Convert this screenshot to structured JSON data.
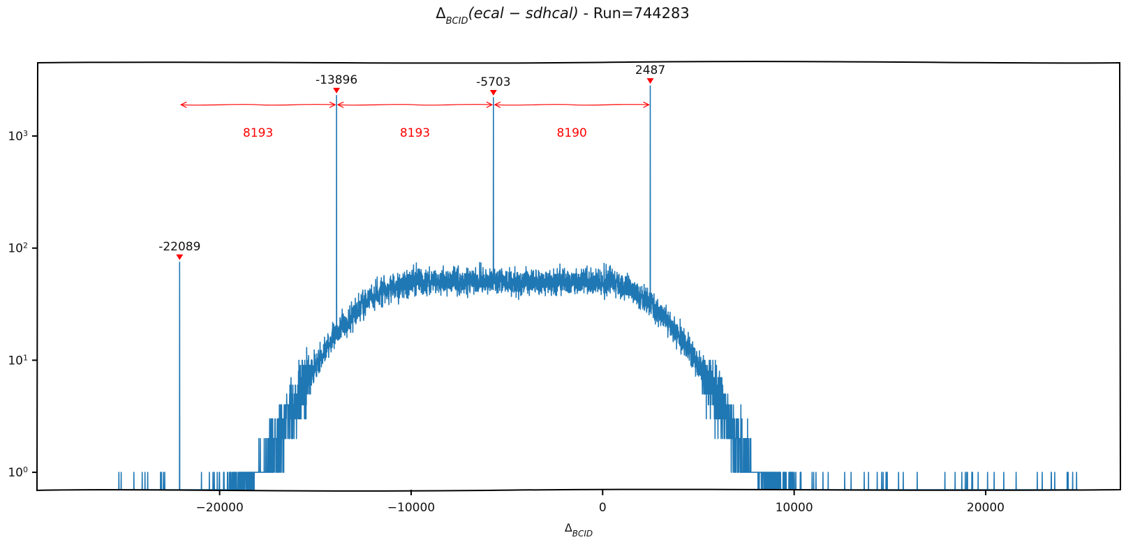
{
  "chart_data": {
    "type": "line",
    "title_prefix": "Δ",
    "title_sub": "BCID",
    "title_expr": "(ecal − sdhcal)",
    "title_suffix": " - Run=744283",
    "xlabel_prefix": "Δ",
    "xlabel_sub": "BCID",
    "yscale": "log",
    "xlim": [
      -29500,
      27000
    ],
    "ylim": [
      0.7,
      4500
    ],
    "xticks": [
      -20000,
      -10000,
      0,
      10000,
      20000
    ],
    "xtick_labels": [
      "−20000",
      "−10000",
      "0",
      "10000",
      "20000"
    ],
    "yticks": [
      1,
      10,
      100,
      1000
    ],
    "ytick_labels": [
      {
        "base": "10",
        "exp": "0"
      },
      {
        "base": "10",
        "exp": "1"
      },
      {
        "base": "10",
        "exp": "2"
      },
      {
        "base": "10",
        "exp": "3"
      }
    ],
    "grid": false,
    "series_color": "#1f77b4",
    "annotation_color": "#ff0000",
    "peaks": [
      {
        "x": -22089,
        "y": 75,
        "label": "-22089"
      },
      {
        "x": -13896,
        "y": 2300,
        "label": "-13896"
      },
      {
        "x": -5703,
        "y": 2200,
        "label": "-5703"
      },
      {
        "x": 2487,
        "y": 2800,
        "label": "2487"
      }
    ],
    "intervals": [
      {
        "from": -22089,
        "to": -13896,
        "label": "8193"
      },
      {
        "from": -13896,
        "to": -5703,
        "label": "8193"
      },
      {
        "from": -5703,
        "to": 2487,
        "label": "8190"
      }
    ],
    "interval_y": 1900,
    "distribution": {
      "plateau_center": -5000,
      "plateau_level": 50,
      "plateau_halfwidth": 13500,
      "falloff_scale": 3000,
      "range": [
        -26500,
        24800
      ]
    }
  }
}
